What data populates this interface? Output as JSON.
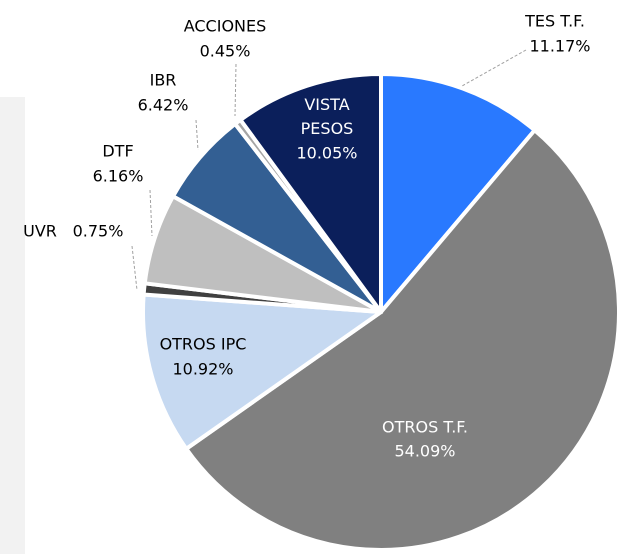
{
  "chart_data": {
    "type": "pie",
    "categories": [
      "TES T.F.",
      "OTROS T.F.",
      "OTROS IPC",
      "UVR",
      "DTF",
      "IBR",
      "ACCIONES",
      "VISTA PESOS"
    ],
    "values": [
      11.17,
      54.09,
      10.92,
      0.75,
      6.16,
      6.42,
      0.45,
      10.05
    ],
    "value_labels": [
      "11.17%",
      "54.09%",
      "10.92%",
      "0.75%",
      "6.16%",
      "6.42%",
      "0.45%",
      "10.05%"
    ],
    "colors": [
      "#2979ff",
      "#808080",
      "#c6d9f1",
      "#404040",
      "#bfbfbf",
      "#335f93",
      "#a6a6a6",
      "#0b1f5b"
    ]
  }
}
